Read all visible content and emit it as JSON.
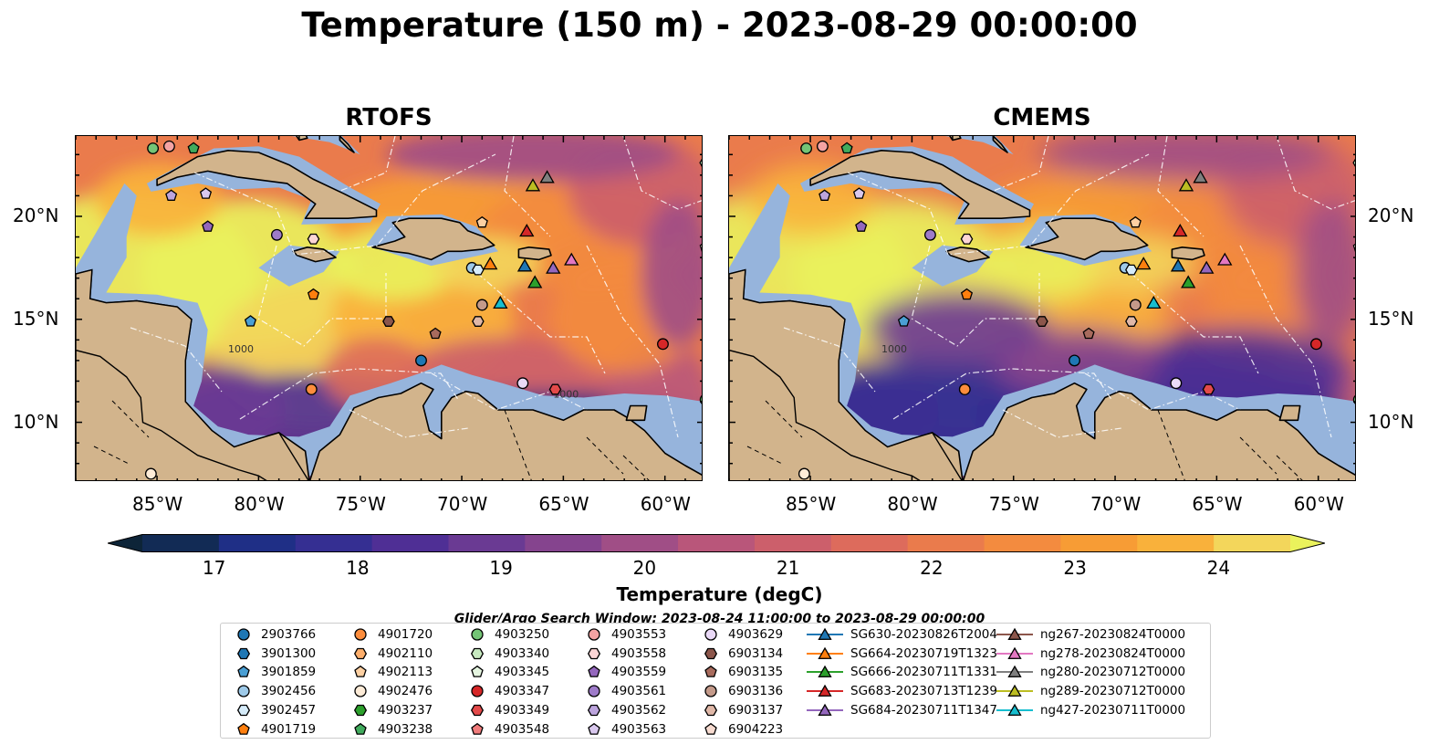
{
  "title": "Temperature (150 m) - 2023-08-29 00:00:00",
  "panels": [
    {
      "title": "RTOFS"
    },
    {
      "title": "CMEMS"
    }
  ],
  "axes": {
    "x_ticks": [
      "85°W",
      "80°W",
      "75°W",
      "70°W",
      "65°W",
      "60°W"
    ],
    "y_ticks": [
      "20°N",
      "15°N",
      "10°N"
    ]
  },
  "contour_labels": [
    "1000",
    "1000"
  ],
  "colorbar": {
    "label": "Temperature (degC)",
    "ticks": [
      "17",
      "18",
      "19",
      "20",
      "21",
      "22",
      "23",
      "24"
    ],
    "range": [
      16.5,
      24.5
    ],
    "extend": "both",
    "colors": [
      "#0d2438",
      "#122b55",
      "#1f2f86",
      "#352f92",
      "#4f2f95",
      "#6a3a93",
      "#85448e",
      "#a04e86",
      "#b9567a",
      "#cc5f6b",
      "#dd6b5c",
      "#ea7b4c",
      "#f38b3f",
      "#f79c35",
      "#f9b13b",
      "#f3d65b",
      "#eaf25c"
    ]
  },
  "land_color": "#d2b48c",
  "shelf_color": "#96b4dc",
  "deep_color": "#0d2438",
  "search_window": "Glider/Argo Search Window: 2023-08-24 11:00:00 to 2023-08-29 00:00:00",
  "legend": {
    "columns": [
      [
        {
          "label": "2903766",
          "marker": "circle",
          "color": "#1f77b4"
        },
        {
          "label": "3901300",
          "marker": "hexagon",
          "color": "#1f77b4"
        },
        {
          "label": "3901859",
          "marker": "pentagon",
          "color": "#4a9fd4"
        },
        {
          "label": "3902456",
          "marker": "circle",
          "color": "#9ecae9"
        },
        {
          "label": "3902457",
          "marker": "hexagon",
          "color": "#d6ecfa"
        },
        {
          "label": "4901719",
          "marker": "pentagon",
          "color": "#ff7f0e"
        }
      ],
      [
        {
          "label": "4901720",
          "marker": "circle",
          "color": "#fd8d3c"
        },
        {
          "label": "4902110",
          "marker": "hexagon",
          "color": "#fdae6b"
        },
        {
          "label": "4902113",
          "marker": "pentagon",
          "color": "#fdd0a2"
        },
        {
          "label": "4902476",
          "marker": "circle",
          "color": "#feecd8"
        },
        {
          "label": "4903237",
          "marker": "hexagon",
          "color": "#2ca02c"
        },
        {
          "label": "4903238",
          "marker": "pentagon",
          "color": "#41ab5d"
        }
      ],
      [
        {
          "label": "4903250",
          "marker": "circle",
          "color": "#74c476"
        },
        {
          "label": "4903340",
          "marker": "hexagon",
          "color": "#c7e9c0"
        },
        {
          "label": "4903345",
          "marker": "pentagon",
          "color": "#e5f5e0"
        },
        {
          "label": "4903347",
          "marker": "circle",
          "color": "#d62728"
        },
        {
          "label": "4903349",
          "marker": "hexagon",
          "color": "#e34a4a"
        },
        {
          "label": "4903548",
          "marker": "pentagon",
          "color": "#f07b7b"
        }
      ],
      [
        {
          "label": "4903553",
          "marker": "circle",
          "color": "#f4a3a3"
        },
        {
          "label": "4903558",
          "marker": "hexagon",
          "color": "#fcd5d5"
        },
        {
          "label": "4903559",
          "marker": "pentagon",
          "color": "#9467bd"
        },
        {
          "label": "4903561",
          "marker": "circle",
          "color": "#9e7bc9"
        },
        {
          "label": "4903562",
          "marker": "hexagon",
          "color": "#bca4dd"
        },
        {
          "label": "4903563",
          "marker": "pentagon",
          "color": "#d9c8ee"
        }
      ],
      [
        {
          "label": "4903629",
          "marker": "circle",
          "color": "#ead9f7"
        },
        {
          "label": "6903134",
          "marker": "hexagon",
          "color": "#8c564b"
        },
        {
          "label": "6903135",
          "marker": "pentagon",
          "color": "#a86b5d"
        },
        {
          "label": "6903136",
          "marker": "circle",
          "color": "#c49a8a"
        },
        {
          "label": "6903137",
          "marker": "hexagon",
          "color": "#e0b8a8"
        },
        {
          "label": "6904223",
          "marker": "pentagon",
          "color": "#f7dbd0"
        }
      ],
      [
        {
          "label": "SG630-20230826T2004",
          "marker": "triangle",
          "color": "#1f77b4"
        },
        {
          "label": "SG664-20230719T1323",
          "marker": "triangle",
          "color": "#ff7f0e"
        },
        {
          "label": "SG666-20230711T1331",
          "marker": "triangle",
          "color": "#2ca02c"
        },
        {
          "label": "SG683-20230713T1239",
          "marker": "triangle",
          "color": "#d62728"
        },
        {
          "label": "SG684-20230711T1347",
          "marker": "triangle",
          "color": "#9467bd"
        }
      ],
      [
        {
          "label": "ng267-20230824T0000",
          "marker": "triangle",
          "color": "#8c564b"
        },
        {
          "label": "ng278-20230824T0000",
          "marker": "triangle",
          "color": "#e377c2"
        },
        {
          "label": "ng280-20230712T0000",
          "marker": "triangle",
          "color": "#7f7f7f"
        },
        {
          "label": "ng289-20230712T0000",
          "marker": "triangle",
          "color": "#bcbd22"
        },
        {
          "label": "ng427-20230711T0000",
          "marker": "triangle",
          "color": "#17becf"
        }
      ]
    ]
  },
  "observations": [
    {
      "lon": -85.2,
      "lat": 23.3,
      "marker": "circle",
      "color": "#74c476"
    },
    {
      "lon": -84.4,
      "lat": 23.4,
      "marker": "circle",
      "color": "#f4a3a3"
    },
    {
      "lon": -83.2,
      "lat": 23.3,
      "marker": "pentagon",
      "color": "#41ab5d"
    },
    {
      "lon": -84.3,
      "lat": 21.0,
      "marker": "pentagon",
      "color": "#bca4dd"
    },
    {
      "lon": -82.6,
      "lat": 21.1,
      "marker": "pentagon",
      "color": "#d9c8ee"
    },
    {
      "lon": -82.5,
      "lat": 19.5,
      "marker": "pentagon",
      "color": "#9467bd"
    },
    {
      "lon": -79.1,
      "lat": 19.1,
      "marker": "circle",
      "color": "#9e7bc9"
    },
    {
      "lon": -77.3,
      "lat": 18.9,
      "marker": "hexagon",
      "color": "#fcd5d5"
    },
    {
      "lon": -77.3,
      "lat": 16.2,
      "marker": "pentagon",
      "color": "#ff7f0e"
    },
    {
      "lon": -80.4,
      "lat": 14.9,
      "marker": "pentagon",
      "color": "#4a9fd4"
    },
    {
      "lon": -73.6,
      "lat": 14.9,
      "marker": "hexagon",
      "color": "#8c564b"
    },
    {
      "lon": -71.3,
      "lat": 14.3,
      "marker": "pentagon",
      "color": "#a86b5d"
    },
    {
      "lon": -72.0,
      "lat": 13.0,
      "marker": "circle",
      "color": "#1f77b4"
    },
    {
      "lon": -77.4,
      "lat": 11.6,
      "marker": "circle",
      "color": "#fd8d3c"
    },
    {
      "lon": -69.0,
      "lat": 15.7,
      "marker": "circle",
      "color": "#c49a8a"
    },
    {
      "lon": -69.2,
      "lat": 14.9,
      "marker": "hexagon",
      "color": "#e0b8a8"
    },
    {
      "lon": -69.0,
      "lat": 19.7,
      "marker": "pentagon",
      "color": "#fdd0a2"
    },
    {
      "lon": -69.5,
      "lat": 17.5,
      "marker": "circle",
      "color": "#9ecae9"
    },
    {
      "lon": -69.2,
      "lat": 17.4,
      "marker": "hexagon",
      "color": "#d6ecfa"
    },
    {
      "lon": -67.0,
      "lat": 11.9,
      "marker": "circle",
      "color": "#ead9f7"
    },
    {
      "lon": -65.4,
      "lat": 11.6,
      "marker": "hexagon",
      "color": "#e34a4a"
    },
    {
      "lon": -60.1,
      "lat": 13.8,
      "marker": "circle",
      "color": "#d62728"
    },
    {
      "lon": -85.3,
      "lat": 7.5,
      "marker": "circle",
      "color": "#feecd8"
    },
    {
      "lon": -58.0,
      "lat": 18.5,
      "marker": "pentagon",
      "color": "#f7dbd0"
    },
    {
      "lon": -58.0,
      "lat": 11.1,
      "marker": "circle",
      "color": "#74c476"
    },
    {
      "lon": -58.0,
      "lat": 22.6,
      "marker": "hexagon",
      "color": "#c7e9c0"
    },
    {
      "lon": -66.5,
      "lat": 21.5,
      "marker": "triangle",
      "color": "#bcbd22"
    },
    {
      "lon": -65.8,
      "lat": 21.9,
      "marker": "triangle",
      "color": "#7f7f7f"
    },
    {
      "lon": -66.8,
      "lat": 19.3,
      "marker": "triangle",
      "color": "#d62728"
    },
    {
      "lon": -68.6,
      "lat": 17.7,
      "marker": "triangle",
      "color": "#ff7f0e"
    },
    {
      "lon": -66.9,
      "lat": 17.6,
      "marker": "triangle",
      "color": "#1f77b4"
    },
    {
      "lon": -65.5,
      "lat": 17.5,
      "marker": "triangle",
      "color": "#9467bd"
    },
    {
      "lon": -64.6,
      "lat": 17.9,
      "marker": "triangle",
      "color": "#e377c2"
    },
    {
      "lon": -66.4,
      "lat": 16.8,
      "marker": "triangle",
      "color": "#2ca02c"
    },
    {
      "lon": -68.1,
      "lat": 15.8,
      "marker": "triangle",
      "color": "#17becf"
    }
  ]
}
